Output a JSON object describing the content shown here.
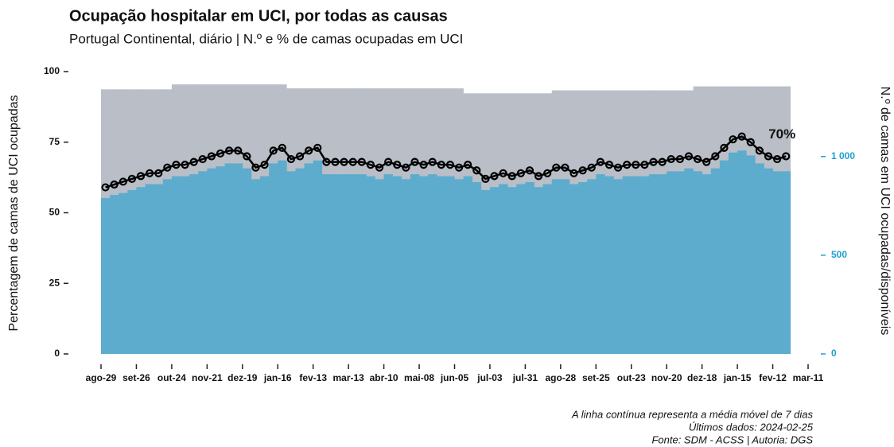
{
  "chart_data": {
    "type": "bar-line",
    "title": "Ocupação hospitalar em UCI, por todas as causas",
    "subtitle": "Portugal Continental, diário | N.º e % de camas ocupadas em UCI",
    "y_label": "Percentagem de camas de UCI ocupadas",
    "y2_label": "N.º de camas em UCI ocupadas/disponíveis",
    "annotation": "70%",
    "caption": [
      "A linha contínua representa a média móvel de 7 dias",
      "Últimos dados: 2024-02-25",
      "Fonte: SDM - ACSS | Autoria: DGS"
    ],
    "categories": [
      "ago-29",
      null,
      null,
      null,
      "set-26",
      null,
      null,
      null,
      "out-24",
      null,
      null,
      null,
      "nov-21",
      null,
      null,
      null,
      "dez-19",
      null,
      null,
      null,
      "jan-16",
      null,
      null,
      null,
      "fev-13",
      null,
      null,
      null,
      "mar-13",
      null,
      null,
      null,
      "abr-10",
      null,
      null,
      null,
      "mai-08",
      null,
      null,
      null,
      "jun-05",
      null,
      null,
      null,
      "jul-03",
      null,
      null,
      null,
      "jul-31",
      null,
      null,
      null,
      "ago-28",
      null,
      null,
      null,
      "set-25",
      null,
      null,
      null,
      "out-23",
      null,
      null,
      null,
      "nov-20",
      null,
      null,
      null,
      "dez-18",
      null,
      null,
      null,
      "jan-15",
      null,
      null,
      null,
      "fev-12",
      null,
      null,
      null,
      "mar-11"
    ],
    "series": [
      {
        "color": "#b9bec7",
        "axis": "y2",
        "values": [
          1340,
          1340,
          1340,
          1340,
          1340,
          1340,
          1340,
          1340,
          1365,
          1365,
          1365,
          1365,
          1365,
          1365,
          1365,
          1365,
          1365,
          1365,
          1365,
          1365,
          1365,
          1345,
          1345,
          1345,
          1345,
          1345,
          1345,
          1345,
          1345,
          1345,
          1345,
          1345,
          1345,
          1345,
          1345,
          1345,
          1345,
          1345,
          1345,
          1345,
          1345,
          1320,
          1320,
          1320,
          1320,
          1320,
          1320,
          1320,
          1320,
          1320,
          1320,
          1335,
          1335,
          1335,
          1335,
          1335,
          1335,
          1335,
          1335,
          1335,
          1335,
          1335,
          1335,
          1335,
          1335,
          1335,
          1335,
          1355,
          1355,
          1355,
          1355,
          1355,
          1355,
          1355,
          1355,
          1355,
          1355,
          1355,
          null,
          null,
          null
        ]
      },
      {
        "color": "#5daccd",
        "axis": "y2",
        "values": [
          790,
          805,
          815,
          830,
          845,
          860,
          860,
          885,
          900,
          900,
          910,
          925,
          940,
          950,
          965,
          965,
          940,
          885,
          900,
          965,
          980,
          925,
          940,
          965,
          980,
          910,
          910,
          910,
          910,
          910,
          900,
          885,
          910,
          900,
          885,
          910,
          900,
          910,
          900,
          900,
          885,
          900,
          870,
          830,
          845,
          860,
          845,
          860,
          870,
          845,
          860,
          885,
          885,
          860,
          870,
          885,
          910,
          900,
          885,
          900,
          900,
          900,
          910,
          910,
          925,
          925,
          940,
          925,
          910,
          940,
          980,
          1020,
          1030,
          1005,
          965,
          940,
          925,
          925,
          null,
          null,
          null
        ]
      },
      {
        "color": "#000000",
        "values": [
          59,
          60,
          61,
          62,
          63,
          64,
          64,
          66,
          67,
          67,
          68,
          69,
          70,
          71,
          72,
          72,
          70,
          66,
          67,
          72,
          73,
          69,
          70,
          72,
          73,
          68,
          68,
          68,
          68,
          68,
          67,
          66,
          68,
          67,
          66,
          68,
          67,
          68,
          67,
          67,
          66,
          67,
          65,
          62,
          63,
          64,
          63,
          64,
          65,
          63,
          64,
          66,
          66,
          64,
          65,
          66,
          68,
          67,
          66,
          67,
          67,
          67,
          68,
          68,
          69,
          69,
          70,
          69,
          68,
          70,
          73,
          76,
          77,
          75,
          72,
          70,
          69,
          70,
          null,
          null,
          null
        ]
      }
    ],
    "ylim": [
      0,
      100
    ],
    "yticks": [
      0,
      25,
      50,
      75,
      100
    ],
    "y2lim": [
      0,
      1430
    ],
    "y2ticks": [
      0,
      500,
      {
        "value": 1000,
        "label": "1 000"
      }
    ],
    "y2_color": "#1f9fd1"
  }
}
